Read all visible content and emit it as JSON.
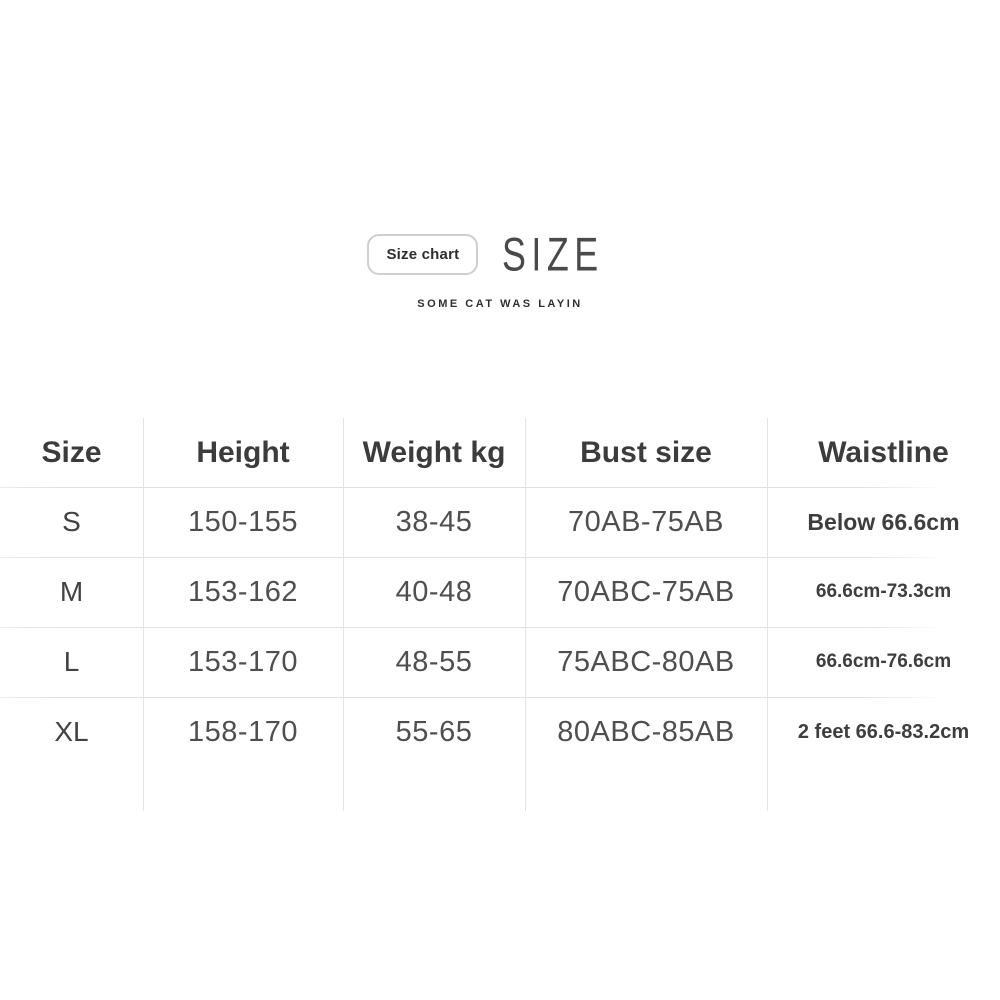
{
  "brand": {
    "badge_label": "Size chart",
    "logo_text": "SIZE",
    "tagline": "SOME CAT WAS LAYIN"
  },
  "chart_data": {
    "type": "table",
    "title": "SIZE — Size chart",
    "columns": [
      "Size",
      "Height",
      "Weight kg",
      "Bust size",
      "Waistline"
    ],
    "rows": [
      [
        "S",
        "150-155",
        "38-45",
        "70AB-75AB",
        "Below 66.6cm"
      ],
      [
        "M",
        "153-162",
        "40-48",
        "70ABC-75AB",
        "66.6cm-73.3cm"
      ],
      [
        "L",
        "153-170",
        "48-55",
        "75ABC-80AB",
        "66.6cm-76.6cm"
      ],
      [
        "XL",
        "158-170",
        "55-65",
        "80ABC-85AB",
        "2 feet 66.6-83.2cm"
      ]
    ],
    "layout": {
      "grid": "light-gray row and column separators",
      "header_row": true
    }
  },
  "colors": {
    "background": "#ffffff",
    "header_text": "#3c3c3c",
    "body_text": "#4f4f4f",
    "waistline_text": "#3e3e3e",
    "grid_line": "#e4e4e4",
    "badge_border": "#cfcfcf"
  }
}
